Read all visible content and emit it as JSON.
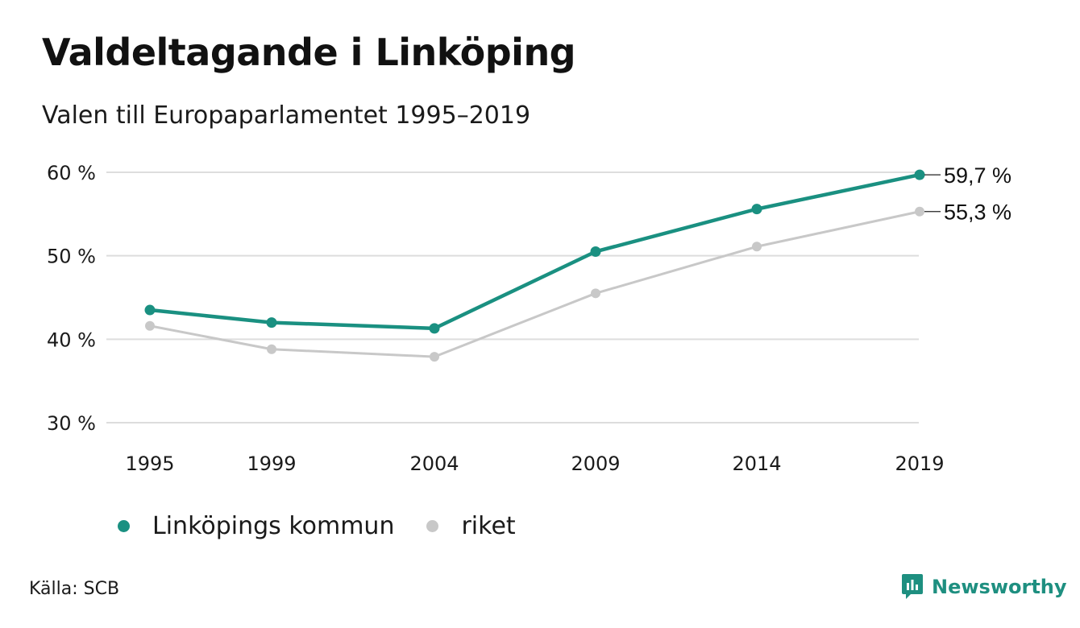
{
  "title": "Valdeltagande i Linköping",
  "subtitle": "Valen till Europaparlamentet 1995–2019",
  "source": "Källa: SCB",
  "brand": {
    "name": "Newsworthy"
  },
  "colors": {
    "linkoping": "#1a9081",
    "riket": "#c8c8c8",
    "grid": "#dddddd",
    "text": "#1a1a1a"
  },
  "chart_data": {
    "type": "line",
    "x": [
      "1995",
      "1999",
      "2004",
      "2009",
      "2014",
      "2019"
    ],
    "series": [
      {
        "name": "Linköpings kommun",
        "values": [
          43.5,
          42.0,
          41.3,
          50.5,
          55.6,
          59.7
        ],
        "color": "#1a9081",
        "end_label": "59,7 %"
      },
      {
        "name": "riket",
        "values": [
          41.6,
          38.8,
          37.9,
          45.5,
          51.1,
          55.3
        ],
        "color": "#c8c8c8",
        "end_label": "55,3 %"
      }
    ],
    "y_ticks": [
      {
        "value": 30,
        "label": "30 %"
      },
      {
        "value": 40,
        "label": "40 %"
      },
      {
        "value": 50,
        "label": "50 %"
      },
      {
        "value": 60,
        "label": "60 %"
      }
    ],
    "ylim": [
      30,
      60
    ],
    "grid": true,
    "legend_position": "bottom-left"
  }
}
